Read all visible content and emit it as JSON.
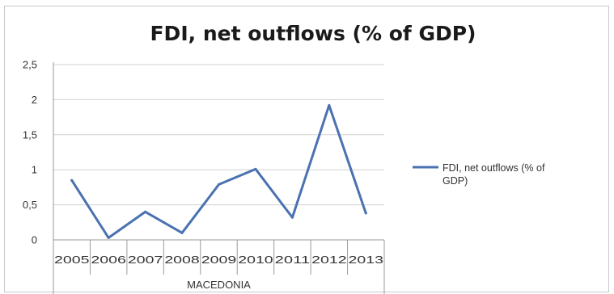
{
  "chart_data": {
    "type": "line",
    "title": "FDI, net outflows (% of GDP)",
    "categories": [
      "2005",
      "2006",
      "2007",
      "2008",
      "2009",
      "2010",
      "2011",
      "2012",
      "2013"
    ],
    "group_label": "MACEDONIA",
    "y_ticks": [
      "0",
      "0,5",
      "1",
      "1,5",
      "2",
      "2,5"
    ],
    "ylim": [
      0,
      2.5
    ],
    "grid": true,
    "legend_position": "right",
    "series": [
      {
        "name": "FDI, net outflows (% of GDP)",
        "legend_lines": [
          "FDI, net outflows (% of",
          "GDP)"
        ],
        "color": "#4a72b0",
        "values": [
          0.85,
          0.03,
          0.4,
          0.1,
          0.79,
          1.01,
          0.32,
          1.92,
          0.38
        ]
      }
    ]
  }
}
